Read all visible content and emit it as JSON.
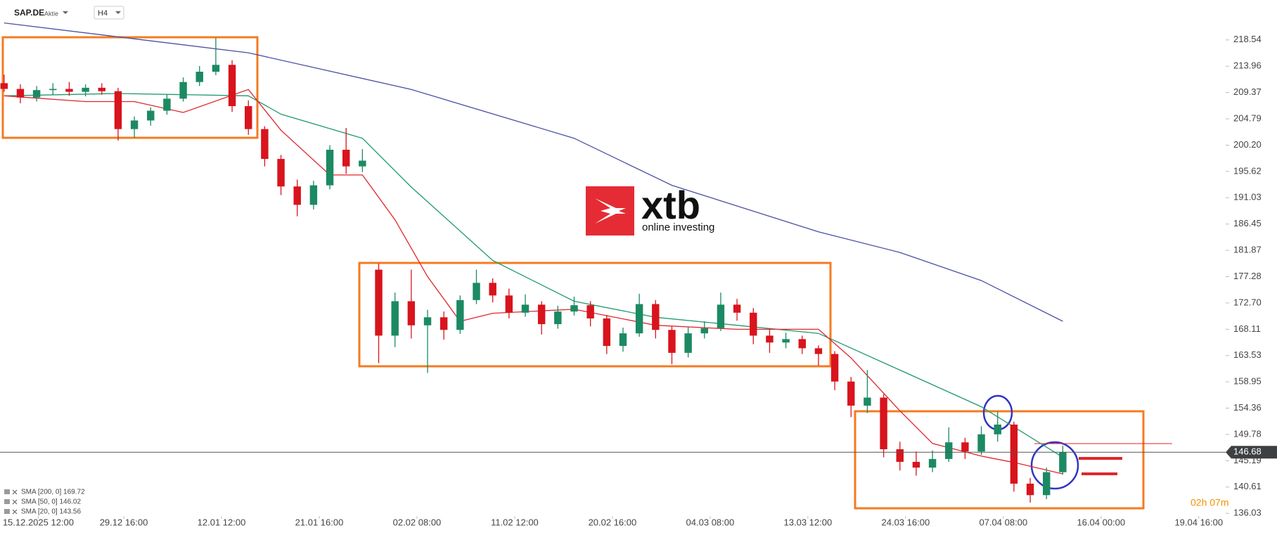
{
  "chart_data": {
    "type": "candlestick",
    "title": "SAP.DE",
    "subtitle": "Aktie",
    "timeframe": "H4",
    "logo": {
      "name": "xtb",
      "tagline": "online investing"
    },
    "countdown": "02h 07m",
    "up_color": "#1b8a62",
    "down_color": "#d8141d",
    "ylim": [
      133.6,
      225.5
    ],
    "yticks": [
      218.54,
      213.96,
      209.37,
      204.79,
      {
        "value": 200.2,
        "label": "200.20"
      },
      195.62,
      191.03,
      186.45,
      181.87,
      177.28,
      {
        "value": 172.7,
        "label": "172.70"
      },
      168.11,
      163.53,
      158.95,
      154.36,
      149.78,
      145.19,
      140.61,
      136.03
    ],
    "xlim": [
      -0.25,
      75
    ],
    "xticks": [
      {
        "value": 2.1,
        "label": "15.12.2025 12:00"
      },
      {
        "value": 7.35,
        "label": "29.12 16:00"
      },
      {
        "value": 13.35,
        "label": "12.01 12:00"
      },
      {
        "value": 19.35,
        "label": "21.01 16:00"
      },
      {
        "value": 25.35,
        "label": "02.02 08:00"
      },
      {
        "value": 31.35,
        "label": "11.02 12:00"
      },
      {
        "value": 37.35,
        "label": "20.02 16:00"
      },
      {
        "value": 43.35,
        "label": "04.03 08:00"
      },
      {
        "value": 49.35,
        "label": "13.03 12:00"
      },
      {
        "value": 55.35,
        "label": "24.03 16:00"
      },
      {
        "value": 61.35,
        "label": "07.04 08:00"
      },
      {
        "value": 67.35,
        "label": "16.04 00:00"
      },
      {
        "value": 73.35,
        "label": "19.04 16:00"
      }
    ],
    "open": [
      211,
      210,
      208.5,
      209.8,
      210,
      209.5,
      210.2,
      209.6,
      203,
      204.5,
      206.2,
      208.3,
      211.2,
      213,
      214.2,
      207,
      203,
      197.8,
      193,
      189.8,
      193.2,
      199.4,
      196.5,
      178.5,
      167,
      173,
      168.8,
      170.2,
      168,
      173.2,
      176.2,
      174,
      171,
      172.4,
      169,
      171.2,
      172.3,
      170,
      165.2,
      167.4,
      172.5,
      168,
      164,
      167.4,
      168.3,
      172.4,
      171,
      167,
      165.8,
      166.4,
      164.8,
      163.8,
      159,
      154.8,
      156.2,
      147.2,
      145,
      144,
      145.5,
      148.4,
      146.8,
      149.8,
      151.5,
      141.2,
      139.2,
      143.2
    ],
    "high": [
      212.5,
      210.8,
      210.5,
      211,
      211.2,
      210.8,
      211,
      210.2,
      205.2,
      206.8,
      209,
      212,
      214,
      218.9,
      215,
      208,
      203.5,
      198.5,
      194.2,
      194,
      200.2,
      203.2,
      199.5,
      179.6,
      174.5,
      178.5,
      171.5,
      171.2,
      174,
      178.5,
      177,
      175.2,
      174.2,
      173,
      172.2,
      173.8,
      173,
      170.6,
      168.4,
      174.3,
      173.2,
      168.6,
      168.5,
      169.5,
      174.5,
      173.4,
      171.8,
      168.2,
      167.5,
      167,
      165.3,
      164.3,
      159.8,
      161,
      156.8,
      148.5,
      146.8,
      147,
      151,
      149.2,
      151.2,
      153.8,
      152,
      142.2,
      144,
      147.8
    ],
    "low": [
      209.5,
      207.5,
      207.8,
      209,
      208.8,
      208.7,
      209,
      201,
      201.5,
      203.6,
      205.5,
      207.8,
      210.5,
      212.4,
      206,
      202,
      196.5,
      191.5,
      187.8,
      189,
      192.5,
      195.2,
      195.5,
      162.2,
      165,
      166.5,
      160.5,
      166.3,
      167.3,
      172.5,
      172.8,
      170,
      170.3,
      167.2,
      168.2,
      170.5,
      168.6,
      163.8,
      164.2,
      166.8,
      166.5,
      162,
      163.2,
      166.5,
      167.8,
      169.6,
      165.5,
      164,
      164.8,
      163.8,
      161.8,
      157.5,
      152.8,
      153.5,
      145.8,
      143.5,
      142.6,
      143.2,
      145,
      145.5,
      146.2,
      148.5,
      139.8,
      137.9,
      138.5,
      142.8
    ],
    "close": [
      210,
      208.5,
      209.8,
      210,
      209.5,
      210.2,
      209.6,
      203,
      204.5,
      206.2,
      208.3,
      211.2,
      213,
      214.2,
      207,
      203,
      197.8,
      193,
      189.8,
      193.2,
      199.4,
      196.5,
      197.5,
      167,
      173,
      168.8,
      170.2,
      168,
      173.2,
      176.2,
      174,
      171,
      172.4,
      169,
      171.2,
      172.3,
      170,
      165.2,
      167.4,
      172.5,
      168,
      164,
      167.4,
      168.3,
      172.4,
      171,
      167,
      165.8,
      166.4,
      164.8,
      163.8,
      159,
      154.8,
      156.2,
      147.2,
      145,
      144,
      145.5,
      148.4,
      146.8,
      149.8,
      151.5,
      141.2,
      139.2,
      143.2,
      146.68
    ],
    "series": [
      {
        "name": "SMA [200, 0] 169.72",
        "color": "#4a4fa3",
        "x": [
          0,
          15,
          25,
          35,
          41,
          50,
          55,
          60,
          65
        ],
        "values": [
          221.5,
          216.3,
          209.9,
          201.4,
          193.2,
          185.1,
          181.5,
          176.6,
          169.5
        ]
      },
      {
        "name": "SMA [50, 0] 146.02",
        "color": "#1f9a6c",
        "x": [
          0,
          7,
          15,
          17,
          22,
          25,
          30,
          35,
          40,
          45,
          50,
          55,
          60,
          65
        ],
        "values": [
          208.8,
          209.2,
          208.8,
          205.6,
          201.4,
          192.9,
          180.1,
          173,
          170.2,
          168.8,
          167.4,
          161,
          154.6,
          145.8
        ]
      },
      {
        "name": "SMA [20, 0] 143.56",
        "color": "#e0262b",
        "x": [
          0,
          5,
          8,
          11,
          15,
          17,
          20,
          22,
          24,
          26,
          28,
          30,
          35,
          40,
          45,
          50,
          52,
          55,
          57,
          60,
          62,
          65
        ],
        "values": [
          208.8,
          207.8,
          207.8,
          205.9,
          209.9,
          202.8,
          195,
          195,
          187.2,
          177.3,
          169.5,
          170.9,
          171.6,
          168.8,
          168.1,
          168.1,
          163.1,
          153.9,
          148.2,
          146,
          144.9,
          142.9
        ]
      }
    ],
    "last_price": 146.68
  }
}
